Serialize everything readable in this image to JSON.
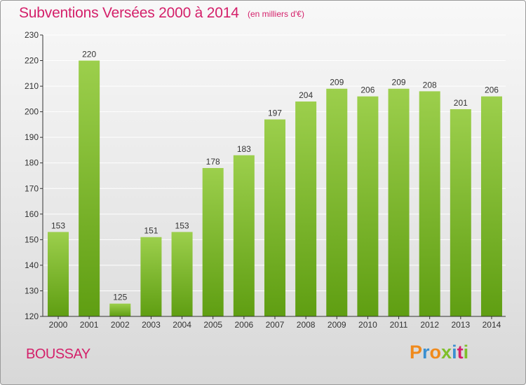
{
  "header": {
    "title": "Subventions Versées 2000 à 2014",
    "subtitle": "(en milliers d'€)"
  },
  "footer": {
    "commune": "BOUSSAY",
    "logo_text": "Proxiti"
  },
  "colors": {
    "title": "#d4206a",
    "bar_top": "#9ccf4c",
    "bar_bottom": "#5f9e12",
    "grid": "#ffffff",
    "axis": "#333333",
    "logo_letters": [
      "#f08a1c",
      "#3a8fd0",
      "#f08a1c",
      "#7fbf2a",
      "#3a8fd0",
      "#d4206a",
      "#7fbf2a"
    ]
  },
  "chart_data": {
    "type": "bar",
    "title": "Subventions Versées 2000 à 2014",
    "subtitle": "(en milliers d'€)",
    "categories": [
      "2000",
      "2001",
      "2002",
      "2003",
      "2004",
      "2005",
      "2006",
      "2007",
      "2008",
      "2009",
      "2010",
      "2011",
      "2012",
      "2013",
      "2014"
    ],
    "values": [
      153,
      220,
      125,
      151,
      153,
      178,
      183,
      197,
      204,
      209,
      206,
      209,
      208,
      201,
      206
    ],
    "data_labels": [
      "153",
      "220",
      "125",
      "151",
      "153",
      "178",
      "183",
      "197",
      "204",
      "209",
      "206",
      "209",
      "208",
      "201",
      "206"
    ],
    "ylim": [
      120,
      230
    ],
    "yticks": [
      120,
      130,
      140,
      150,
      160,
      170,
      180,
      190,
      200,
      210,
      220,
      230
    ],
    "ytick_labels": [
      "120",
      "130",
      "140",
      "150",
      "160",
      "170",
      "180",
      "190",
      "200",
      "210",
      "220",
      "230"
    ],
    "xlabel": "",
    "ylabel": "",
    "grid": true
  }
}
